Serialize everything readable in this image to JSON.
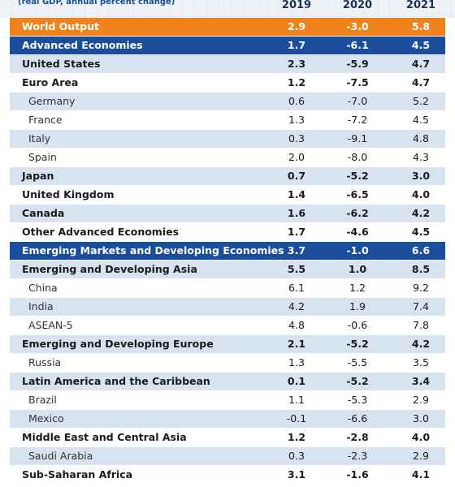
{
  "header": {
    "subtitle": "(real GDP, annual percent change)",
    "years": [
      "2019",
      "2020",
      "2021"
    ]
  },
  "table": {
    "rows": [
      [
        "World Output",
        "2.9",
        "-3.0",
        "5.8"
      ],
      [
        "Advanced Economies",
        "1.7",
        "-6.1",
        "4.5"
      ],
      [
        "United States",
        "2.3",
        "-5.9",
        "4.7"
      ],
      [
        "Euro Area",
        "1.2",
        "-7.5",
        "4.7"
      ],
      [
        "Germany",
        "0.6",
        "-7.0",
        "5.2"
      ],
      [
        "France",
        "1.3",
        "-7.2",
        "4.5"
      ],
      [
        "Italy",
        "0.3",
        "-9.1",
        "4.8"
      ],
      [
        "Spain",
        "2.0",
        "-8.0",
        "4.3"
      ],
      [
        "Japan",
        "0.7",
        "-5.2",
        "3.0"
      ],
      [
        "United Kingdom",
        "1.4",
        "-6.5",
        "4.0"
      ],
      [
        "Canada",
        "1.6",
        "-6.2",
        "4.2"
      ],
      [
        "Other Advanced Economies",
        "1.7",
        "-4.6",
        "4.5"
      ],
      [
        "Emerging Markets and Developing Economies",
        "3.7",
        "-1.0",
        "6.6"
      ],
      [
        "Emerging and Developing Asia",
        "5.5",
        "1.0",
        "8.5"
      ],
      [
        "China",
        "6.1",
        "1.2",
        "9.2"
      ],
      [
        "India",
        "4.2",
        "1.9",
        "7.4"
      ],
      [
        "ASEAN-5",
        "4.8",
        "-0.6",
        "7.8"
      ],
      [
        "Emerging and Developing Europe",
        "2.1",
        "-5.2",
        "4.2"
      ],
      [
        "Russia",
        "1.3",
        "-5.5",
        "3.5"
      ],
      [
        "Latin America and the Caribbean",
        "0.1",
        "-5.2",
        "3.4"
      ],
      [
        "Brazil",
        "1.1",
        "-5.3",
        "2.9"
      ],
      [
        "Mexico",
        "-0.1",
        "-6.6",
        "3.0"
      ],
      [
        "Middle East and Central Asia",
        "1.2",
        "-2.8",
        "4.0"
      ],
      [
        "Saudi Arabia",
        "0.3",
        "-2.3",
        "2.9"
      ],
      [
        "Sub-Saharan Africa",
        "3.1",
        "-1.6",
        "4.1"
      ]
    ]
  }
}
